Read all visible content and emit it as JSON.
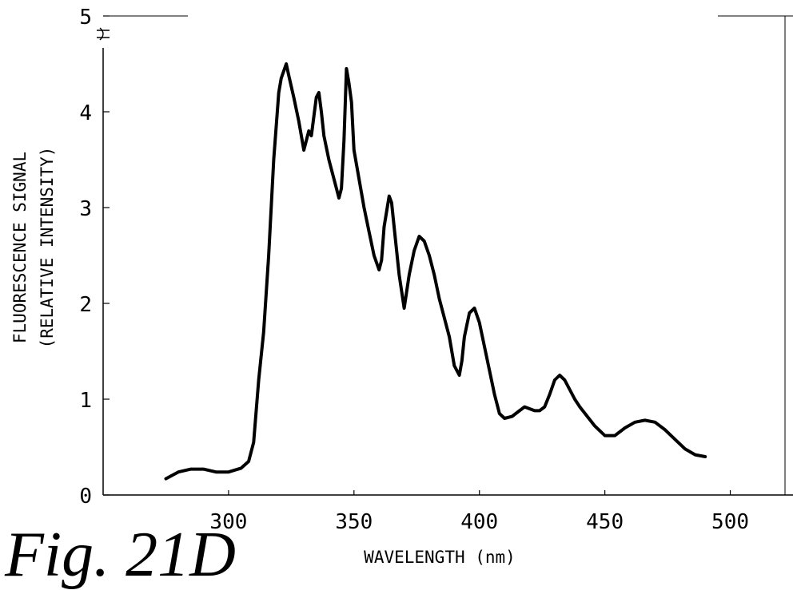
{
  "figure_label": "Fig. 21D",
  "chart_data": {
    "type": "line",
    "title": "",
    "xlabel": "WAVELENGTH (nm)",
    "ylabel": "FLUORESCENCE SIGNAL",
    "ylabel2": "(RELATIVE INTENSITY)",
    "xlim": [
      250,
      525
    ],
    "ylim": [
      0,
      5
    ],
    "xticks": [
      300,
      350,
      400,
      450,
      500
    ],
    "yticks": [
      0,
      1,
      2,
      3,
      4,
      5
    ],
    "grid": false,
    "series": [
      {
        "color": "#000000",
        "x": [
          275,
          280,
          285,
          290,
          295,
          300,
          305,
          308,
          310,
          312,
          314,
          316,
          318,
          320,
          321,
          323,
          324,
          326,
          328,
          330,
          332,
          333,
          334,
          335,
          336,
          337,
          338,
          340,
          342,
          344,
          345,
          346,
          347,
          348,
          349,
          350,
          352,
          354,
          356,
          358,
          360,
          361,
          362,
          364,
          365,
          366,
          368,
          370,
          372,
          374,
          376,
          378,
          380,
          382,
          384,
          386,
          388,
          390,
          392,
          393,
          394,
          396,
          398,
          400,
          402,
          404,
          406,
          408,
          410,
          413,
          416,
          418,
          420,
          422,
          424,
          426,
          428,
          430,
          432,
          434,
          436,
          438,
          440,
          443,
          446,
          450,
          454,
          458,
          462,
          466,
          470,
          474,
          478,
          482,
          486,
          490
        ],
        "y": [
          0.17,
          0.24,
          0.27,
          0.27,
          0.24,
          0.24,
          0.28,
          0.35,
          0.55,
          1.2,
          1.7,
          2.5,
          3.5,
          4.2,
          4.35,
          4.5,
          4.38,
          4.15,
          3.9,
          3.6,
          3.8,
          3.75,
          3.95,
          4.15,
          4.2,
          4.0,
          3.75,
          3.5,
          3.3,
          3.1,
          3.2,
          3.7,
          4.45,
          4.3,
          4.1,
          3.6,
          3.3,
          3.0,
          2.75,
          2.5,
          2.35,
          2.45,
          2.8,
          3.12,
          3.05,
          2.8,
          2.3,
          1.95,
          2.3,
          2.55,
          2.7,
          2.65,
          2.5,
          2.3,
          2.05,
          1.85,
          1.65,
          1.35,
          1.25,
          1.4,
          1.65,
          1.9,
          1.95,
          1.8,
          1.55,
          1.3,
          1.05,
          0.85,
          0.8,
          0.82,
          0.88,
          0.92,
          0.9,
          0.88,
          0.88,
          0.92,
          1.05,
          1.2,
          1.25,
          1.2,
          1.1,
          1.0,
          0.92,
          0.82,
          0.72,
          0.62,
          0.62,
          0.7,
          0.76,
          0.78,
          0.76,
          0.68,
          0.58,
          0.48,
          0.42,
          0.4
        ]
      }
    ]
  }
}
